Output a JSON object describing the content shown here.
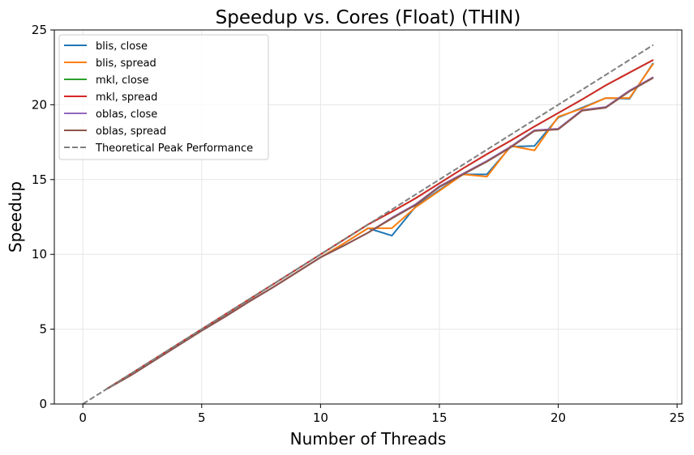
{
  "chart_data": {
    "type": "line",
    "title": "Speedup vs. Cores (Float) (THIN)",
    "xlabel": "Number of Threads",
    "ylabel": "Speedup",
    "xlim": [
      -1.2,
      25.2
    ],
    "ylim": [
      0,
      25
    ],
    "xticks": [
      0,
      5,
      10,
      15,
      20,
      25
    ],
    "yticks": [
      0,
      5,
      10,
      15,
      20,
      25
    ],
    "grid": true,
    "legend_position": "top-left",
    "series": [
      {
        "name": "blis, close",
        "color": "#1f77b4",
        "dash": "solid",
        "x": [
          1,
          2,
          3,
          4,
          5,
          6,
          7,
          8,
          9,
          10,
          11,
          12,
          13,
          14,
          15,
          16,
          17,
          18,
          19,
          20,
          21,
          22,
          23,
          24
        ],
        "y": [
          1.0,
          1.9,
          2.9,
          3.9,
          4.9,
          5.85,
          6.85,
          7.8,
          8.8,
          9.8,
          10.75,
          11.75,
          11.25,
          13.2,
          14.3,
          15.35,
          15.35,
          17.2,
          17.25,
          19.15,
          19.8,
          20.45,
          20.4,
          22.8
        ]
      },
      {
        "name": "blis, spread",
        "color": "#ff7f0e",
        "dash": "solid",
        "x": [
          1,
          2,
          3,
          4,
          5,
          6,
          7,
          8,
          9,
          10,
          11,
          12,
          13,
          14,
          15,
          16,
          17,
          18,
          19,
          20,
          21,
          22,
          23,
          24
        ],
        "y": [
          1.0,
          1.9,
          2.9,
          3.9,
          4.9,
          5.85,
          6.85,
          7.8,
          8.8,
          9.8,
          10.75,
          11.75,
          11.75,
          13.15,
          14.25,
          15.35,
          15.2,
          17.25,
          16.95,
          19.2,
          19.75,
          20.45,
          20.45,
          22.75
        ]
      },
      {
        "name": "mkl, close",
        "color": "#2ca02c",
        "dash": "solid",
        "x": [
          1,
          2,
          3,
          4,
          5,
          6,
          7,
          8,
          9,
          10,
          11,
          12,
          13,
          14,
          15,
          16,
          17,
          18,
          19,
          20,
          21,
          22,
          23,
          24
        ],
        "y": [
          1.0,
          2.0,
          3.0,
          4.0,
          5.0,
          6.0,
          7.0,
          8.0,
          9.0,
          10.0,
          11.0,
          12.0,
          12.85,
          13.75,
          14.75,
          15.75,
          16.7,
          17.6,
          18.55,
          19.45,
          20.35,
          21.3,
          22.15,
          23.0
        ]
      },
      {
        "name": "mkl, spread",
        "color": "#d62728",
        "dash": "solid",
        "x": [
          1,
          2,
          3,
          4,
          5,
          6,
          7,
          8,
          9,
          10,
          11,
          12,
          13,
          14,
          15,
          16,
          17,
          18,
          19,
          20,
          21,
          22,
          23,
          24
        ],
        "y": [
          1.0,
          2.0,
          3.0,
          4.0,
          5.0,
          6.0,
          7.0,
          8.0,
          9.0,
          10.0,
          11.0,
          12.0,
          12.85,
          13.75,
          14.75,
          15.75,
          16.7,
          17.6,
          18.55,
          19.45,
          20.35,
          21.3,
          22.15,
          23.0
        ]
      },
      {
        "name": "oblas, close",
        "color": "#9467bd",
        "dash": "solid",
        "x": [
          1,
          2,
          3,
          4,
          5,
          6,
          7,
          8,
          9,
          10,
          11,
          12,
          13,
          14,
          15,
          16,
          17,
          18,
          19,
          20,
          21,
          22,
          23,
          24
        ],
        "y": [
          1.0,
          1.9,
          2.9,
          3.9,
          4.9,
          5.85,
          6.85,
          7.8,
          8.8,
          9.8,
          10.6,
          11.45,
          12.45,
          13.35,
          14.55,
          15.4,
          16.25,
          17.2,
          18.3,
          18.4,
          19.65,
          19.85,
          20.95,
          21.85
        ]
      },
      {
        "name": "oblas, spread",
        "color": "#8c564b",
        "dash": "solid",
        "x": [
          1,
          2,
          3,
          4,
          5,
          6,
          7,
          8,
          9,
          10,
          11,
          12,
          13,
          14,
          15,
          16,
          17,
          18,
          19,
          20,
          21,
          22,
          23,
          24
        ],
        "y": [
          1.0,
          1.9,
          2.9,
          3.9,
          4.9,
          5.85,
          6.85,
          7.8,
          8.8,
          9.8,
          10.6,
          11.45,
          12.4,
          13.3,
          14.5,
          15.35,
          16.2,
          17.15,
          18.25,
          18.35,
          19.6,
          19.8,
          20.9,
          21.8
        ]
      },
      {
        "name": "Theoretical Peak Performance",
        "color": "#808080",
        "dash": "dashed",
        "x": [
          0,
          24
        ],
        "y": [
          0,
          24
        ]
      }
    ]
  }
}
